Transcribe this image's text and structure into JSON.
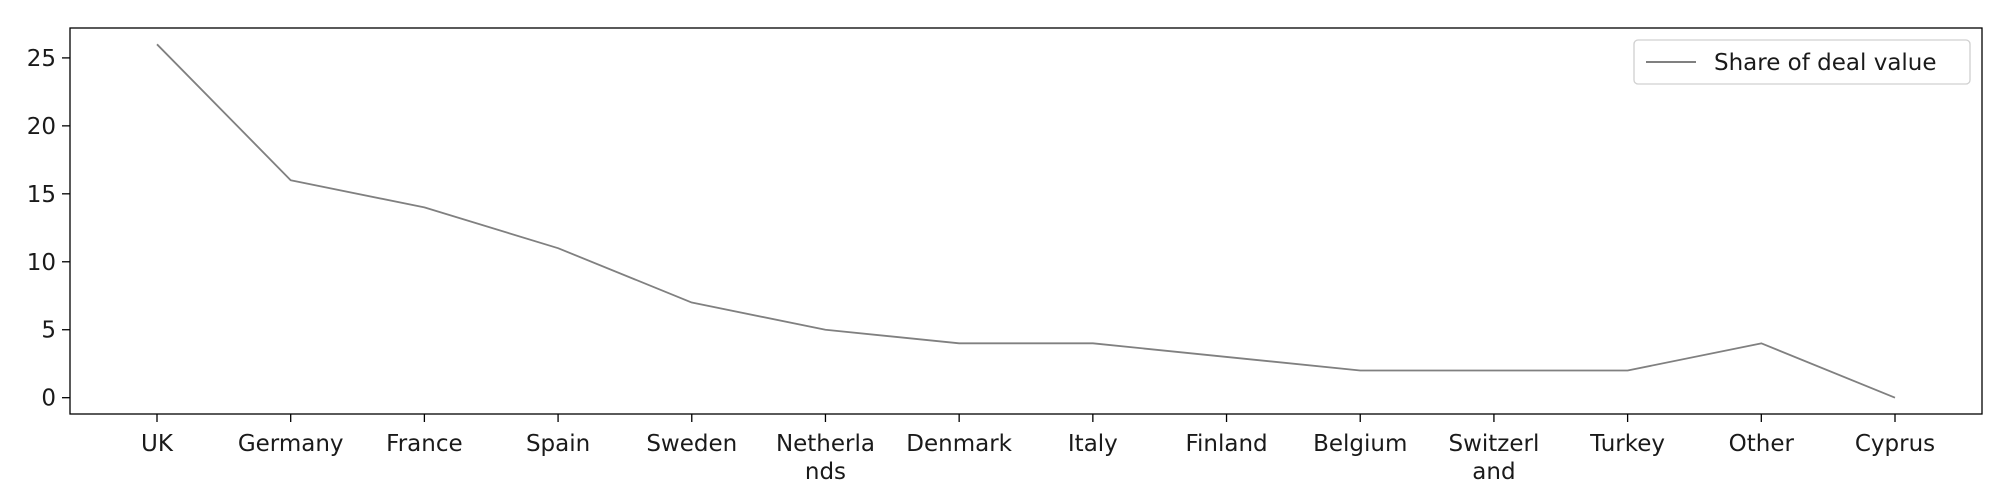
{
  "chart_data": {
    "type": "line",
    "title": "",
    "xlabel": "",
    "ylabel": "",
    "categories": [
      "UK",
      "Germany",
      "France",
      "Spain",
      "Sweden",
      "Netherla\nnds",
      "Denmark",
      "Italy",
      "Finland",
      "Belgium",
      "Switzerl\nand",
      "Turkey",
      "Other",
      "Cyprus"
    ],
    "series": [
      {
        "name": "Share of deal value",
        "values": [
          26,
          16,
          14,
          11,
          7,
          5,
          4,
          4,
          3,
          2,
          2,
          2,
          4,
          0
        ],
        "color": "#808080"
      }
    ],
    "ylim": [
      -1.2,
      27.2
    ],
    "yticks": [
      0,
      5,
      10,
      15,
      20,
      25
    ],
    "grid": false,
    "legend": "top-right"
  }
}
